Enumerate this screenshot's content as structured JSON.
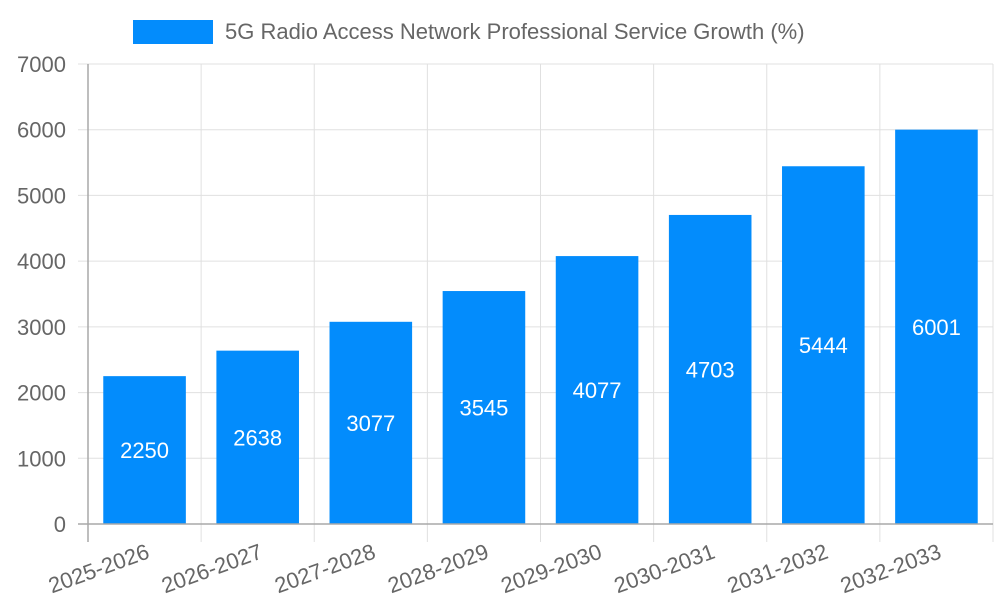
{
  "chart_data": {
    "type": "bar",
    "title": "",
    "legend": [
      {
        "label": "5G Radio Access Network Professional Service Growth (%)",
        "color": "#038CFC"
      }
    ],
    "legend_position": "top",
    "categories": [
      "2025-2026",
      "2026-2027",
      "2027-2028",
      "2028-2029",
      "2029-2030",
      "2030-2031",
      "2031-2032",
      "2032-2033"
    ],
    "series": [
      {
        "name": "5G Radio Access Network Professional Service Growth (%)",
        "values": [
          2250,
          2638,
          3077,
          3545,
          4077,
          4703,
          5444,
          6001
        ],
        "color": "#038CFC"
      }
    ],
    "xlabel": "",
    "ylabel": "",
    "ylim": [
      0,
      7000
    ],
    "yticks": [
      0,
      1000,
      2000,
      3000,
      4000,
      5000,
      6000,
      7000
    ],
    "grid": true,
    "data_labels": true
  },
  "colors": {
    "bar": "#038CFC",
    "grid": "#e0e0e0",
    "axis": "#a8a8a8",
    "tick_text": "#666666",
    "label_text": "#ffffff"
  }
}
